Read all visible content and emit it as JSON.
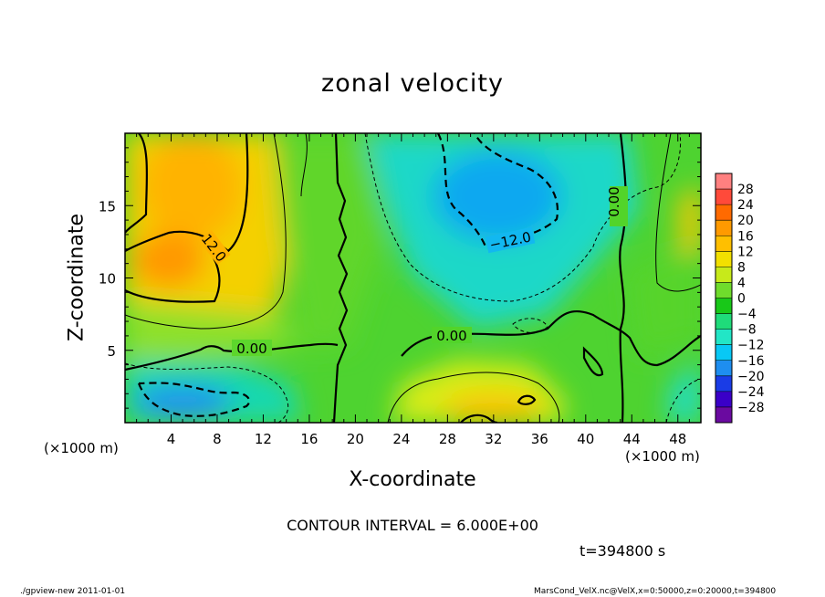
{
  "chart_data": {
    "type": "heatmap",
    "title": "zonal velocity",
    "xlabel": "X-coordinate",
    "ylabel": "Z-coordinate",
    "x_unit": "(×1000 m)",
    "y_unit": "(×1000 m)",
    "xlim": [
      0,
      50
    ],
    "ylim": [
      0,
      20
    ],
    "x_ticks": [
      "4",
      "8",
      "12",
      "16",
      "20",
      "24",
      "28",
      "32",
      "36",
      "40",
      "44",
      "48"
    ],
    "y_ticks": [
      "5",
      "10",
      "15"
    ],
    "colorbar_levels": [
      "28",
      "24",
      "20",
      "16",
      "12",
      "8",
      "4",
      "0",
      "−4",
      "−8",
      "−12",
      "−16",
      "−20",
      "−24",
      "−28"
    ],
    "colorbar_colors": [
      "#ff8080",
      "#ff4a3a",
      "#ff6a00",
      "#ff9a00",
      "#ffbf00",
      "#f2e000",
      "#c7ea1a",
      "#6fdc2c",
      "#18c818",
      "#1fdc7a",
      "#22e6c6",
      "#08c8f5",
      "#1e8ef0",
      "#1a3ce6",
      "#3a00c8",
      "#6a0aa0"
    ],
    "contour_labels": [
      "12.0",
      "0.00",
      "0.00",
      "0.00",
      "−12.0"
    ],
    "contour_interval": "CONTOUR INTERVAL = 6.000E+00",
    "time": "t=394800 s",
    "features": [
      {
        "x": 6,
        "z": 15,
        "u": 14
      },
      {
        "x": 31,
        "z": 15.5,
        "u": -14
      },
      {
        "x": 6,
        "z": 1.5,
        "u": -15
      },
      {
        "x": 33,
        "z": 2,
        "u": 12
      },
      {
        "x": 49,
        "z": 13,
        "u": 12
      },
      {
        "x": 49,
        "z": 2,
        "u": -8
      },
      {
        "x": 4,
        "z": 5,
        "u": 0
      },
      {
        "x": 40,
        "z": 7,
        "u": 2
      }
    ]
  },
  "footer": {
    "left": "./gpview-new   2011-01-01",
    "right": "MarsCond_VelX.nc@VelX,x=0:50000,z=0:20000,t=394800"
  }
}
